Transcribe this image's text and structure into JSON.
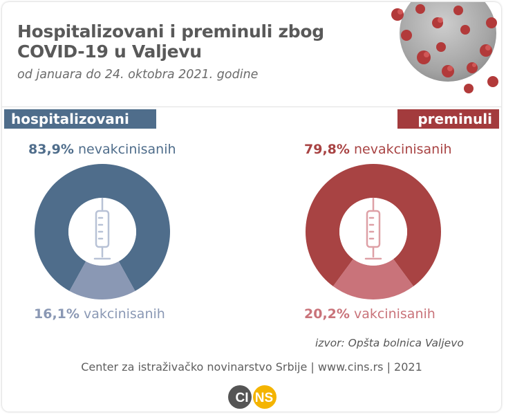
{
  "header": {
    "title_line1": "Hospitalizovani i preminuli zbog",
    "title_line2": "COVID-19 u Valjevu",
    "subtitle": "od januara do 24. oktobra 2021. godine"
  },
  "chart_data": [
    {
      "type": "pie",
      "title": "hospitalizovani",
      "slices": [
        {
          "label": "nevakcinisanih",
          "value": 83.9,
          "value_label": "83,9%",
          "color": "#4f6d8b"
        },
        {
          "label": "vakcinisanih",
          "value": 16.1,
          "value_label": "16,1%",
          "color": "#8a98b4"
        }
      ]
    },
    {
      "type": "pie",
      "title": "preminuli",
      "slices": [
        {
          "label": "nevakcinisanih",
          "value": 79.8,
          "value_label": "79,8%",
          "color": "#a84343"
        },
        {
          "label": "vakcinisanih",
          "value": 20.2,
          "value_label": "20,2%",
          "color": "#c9737a"
        }
      ]
    }
  ],
  "source": "izvor: Opšta bolnica Valjevo",
  "footer": "Center za istraživačko novinarstvo Srbije | www.cins.rs | 2021",
  "logo": {
    "left_text": "CI",
    "right_text": "NS",
    "left_color": "#555555",
    "right_color": "#f4b400"
  },
  "icons": {
    "center_icon": "syringe-icon",
    "corner_image": "coronavirus-image"
  }
}
